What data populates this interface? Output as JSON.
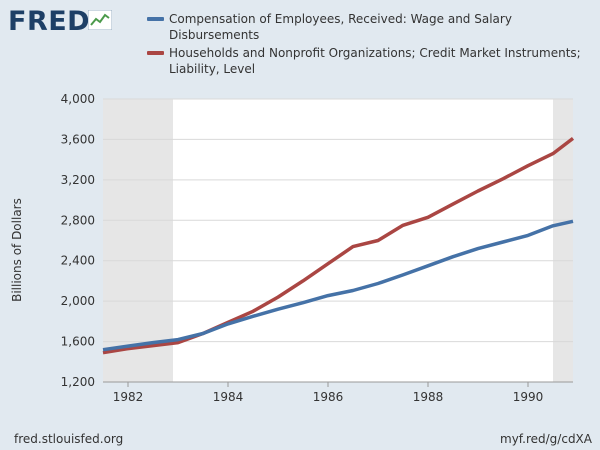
{
  "header": {
    "logo_text": "FRED",
    "logo_icon": "line-chart-icon"
  },
  "colors": {
    "background": "#e1e9f0",
    "plot_background": "#ffffff",
    "recession_shade": "#e6e6e6",
    "series_compensation": "#4572a7",
    "series_credit": "#aa4643",
    "grid": "#d9d9d9"
  },
  "chart_data": {
    "type": "line",
    "title": "",
    "xlabel": "",
    "ylabel": "Billions of Dollars",
    "xlim": [
      1981.5,
      1990.9
    ],
    "ylim": [
      1200,
      4000
    ],
    "y_ticks": [
      1200,
      1600,
      2000,
      2400,
      2800,
      3200,
      3600,
      4000
    ],
    "y_tick_labels": [
      "1,200",
      "1,600",
      "2,000",
      "2,400",
      "2,800",
      "3,200",
      "3,600",
      "4,000"
    ],
    "x_ticks": [
      1982,
      1984,
      1986,
      1988,
      1990
    ],
    "x_tick_labels": [
      "1982",
      "1984",
      "1986",
      "1988",
      "1990"
    ],
    "grid": true,
    "legend_position": "top",
    "recessions": [
      [
        1981.5,
        1982.9
      ],
      [
        1990.5,
        1990.9
      ]
    ],
    "series": [
      {
        "name": "Compensation of Employees, Received: Wage and Salary Disbursements",
        "x": [
          1981.5,
          1982.0,
          1982.5,
          1983.0,
          1983.5,
          1984.0,
          1984.5,
          1985.0,
          1985.5,
          1986.0,
          1986.5,
          1987.0,
          1987.5,
          1988.0,
          1988.5,
          1989.0,
          1989.5,
          1990.0,
          1990.5,
          1990.9
        ],
        "y": [
          1520,
          1555,
          1590,
          1620,
          1680,
          1775,
          1850,
          1920,
          1985,
          2055,
          2105,
          2175,
          2260,
          2350,
          2440,
          2520,
          2585,
          2650,
          2745,
          2790
        ]
      },
      {
        "name": "Households and Nonprofit Organizations; Credit Market Instruments; Liability, Level",
        "x": [
          1981.5,
          1982.0,
          1982.5,
          1983.0,
          1983.5,
          1984.0,
          1984.5,
          1985.0,
          1985.5,
          1986.0,
          1986.5,
          1987.0,
          1987.5,
          1988.0,
          1988.5,
          1989.0,
          1989.5,
          1990.0,
          1990.5,
          1990.9
        ],
        "y": [
          1490,
          1530,
          1560,
          1590,
          1680,
          1790,
          1900,
          2040,
          2200,
          2370,
          2540,
          2600,
          2750,
          2830,
          2960,
          3090,
          3210,
          3340,
          3460,
          3610
        ]
      }
    ]
  },
  "footer": {
    "source": "fred.stlouisfed.org",
    "link": "myf.red/g/cdXA"
  }
}
